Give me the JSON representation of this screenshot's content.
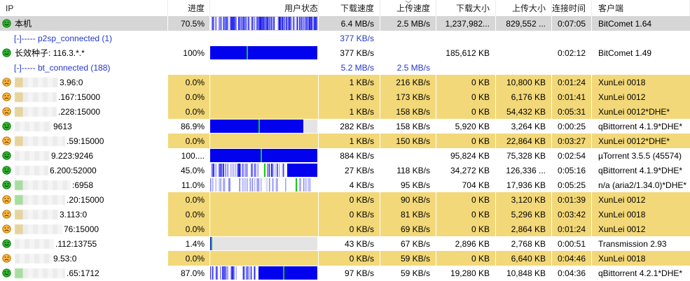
{
  "colors": {
    "bar_blue": "#0202ee",
    "marker_green": "#12c812",
    "row_yellow": "#f2d878",
    "row_selected": "#d6d6d6",
    "bar_track_gray": "#e4e4e4",
    "link_blue": "#2337cc",
    "icon_green": "#2fb52f",
    "icon_orange": "#ffb43c"
  },
  "header": {
    "columns": [
      {
        "key": "ip",
        "label": "IP",
        "align": "left"
      },
      {
        "key": "progress",
        "label": "进度",
        "align": "right"
      },
      {
        "key": "status",
        "label": "用户状态",
        "align": "right"
      },
      {
        "key": "dspeed",
        "label": "下载速度",
        "align": "right"
      },
      {
        "key": "uspeed",
        "label": "上传速度",
        "align": "right",
        "sort": "descending"
      },
      {
        "key": "dsize",
        "label": "下载大小",
        "align": "right"
      },
      {
        "key": "usize",
        "label": "上传大小",
        "align": "right"
      },
      {
        "key": "time",
        "label": "连接时间",
        "align": "right"
      },
      {
        "key": "client",
        "label": "客户端",
        "align": "left"
      }
    ]
  },
  "rows": [
    {
      "type": "peer",
      "icon": "happy-face-icon",
      "ip": "本机",
      "progress": "70.5%",
      "bar": {
        "style": "striped",
        "density": 0.8,
        "seed": 11
      },
      "dspeed": "6.4 MB/s",
      "uspeed": "2.5 MB/s",
      "dsize": "1,237,982...",
      "usize": "829,552 ...",
      "time": "0:07:05",
      "client": "BitComet 1.64",
      "bg": "selected"
    },
    {
      "type": "group",
      "label": "[-]----- p2sp_connected (1)",
      "dspeed": "377 KB/s",
      "uspeed": ""
    },
    {
      "type": "peer",
      "icon": "happy-face-icon",
      "ip": "长效种子: 116.3.*.*",
      "progress": "100%",
      "bar": {
        "style": "solid",
        "fill": 1,
        "marker": 0.34
      },
      "dspeed": "377 KB/s",
      "uspeed": "",
      "dsize": "185,612 KB",
      "usize": "",
      "time": "0:02:12",
      "client": "BitComet 1.49",
      "bg": "white"
    },
    {
      "type": "group",
      "label": "[-]----- bt_connected (188)",
      "dspeed": "5.2 MB/s",
      "uspeed": "2.5 MB/s"
    },
    {
      "type": "peer",
      "icon": "sad-face-icon",
      "redact": {
        "chip": "tan",
        "w": 50
      },
      "ip": "3.96:0",
      "progress": "0.0%",
      "bar": {
        "style": "none"
      },
      "dspeed": "1 KB/s",
      "uspeed": "216 KB/s",
      "dsize": "0 KB",
      "usize": "10,800 KB",
      "time": "0:01:24",
      "client": "XunLei 0018",
      "bg": "yellow"
    },
    {
      "type": "peer",
      "icon": "sad-face-icon",
      "redact": {
        "chip": "tan",
        "w": 48
      },
      "ip": ".167:15000",
      "progress": "0.0%",
      "bar": {
        "style": "none"
      },
      "dspeed": "1 KB/s",
      "uspeed": "173 KB/s",
      "dsize": "0 KB",
      "usize": "6,176 KB",
      "time": "0:01:41",
      "client": "XunLei 0012",
      "bg": "yellow"
    },
    {
      "type": "peer",
      "icon": "sad-face-icon",
      "redact": {
        "chip": "tan",
        "w": 48
      },
      "ip": ".228:15000",
      "progress": "0.0%",
      "bar": {
        "style": "none"
      },
      "dspeed": "1 KB/s",
      "uspeed": "158 KB/s",
      "dsize": "0 KB",
      "usize": "54,432 KB",
      "time": "0:05:31",
      "client": "XunLei 0012*DHE*",
      "bg": "yellow"
    },
    {
      "type": "peer",
      "icon": "happy-face-icon",
      "redact": {
        "chip": null,
        "w": 53
      },
      "ip": "9613",
      "progress": "86.9%",
      "bar": {
        "style": "solid",
        "fill": 0.869,
        "marker": 0.45,
        "track": "gray"
      },
      "dspeed": "282 KB/s",
      "uspeed": "158 KB/s",
      "dsize": "5,920 KB",
      "usize": "3,264 KB",
      "time": "0:00:25",
      "client": "qBittorrent 4.1.9*DHE*",
      "bg": "white"
    },
    {
      "type": "peer",
      "icon": "sad-face-icon",
      "redact": {
        "chip": "tan",
        "w": 60
      },
      "ip": ".59:15000",
      "progress": "0.0%",
      "bar": {
        "style": "none"
      },
      "dspeed": "1 KB/s",
      "uspeed": "150 KB/s",
      "dsize": "0 KB",
      "usize": "22,864 KB",
      "time": "0:03:27",
      "client": "XunLei 0012*DHE*",
      "bg": "yellow"
    },
    {
      "type": "peer",
      "icon": "happy-face-icon",
      "redact": {
        "chip": null,
        "w": 50
      },
      "ip": "9.223:9246",
      "progress": "100....",
      "bar": {
        "style": "solid",
        "fill": 1,
        "marker": 0.47
      },
      "dspeed": "884 KB/s",
      "uspeed": "",
      "dsize": "95,824 KB",
      "usize": "75,328 KB",
      "time": "0:02:54",
      "client": "µTorrent 3.5.5 (45574)",
      "bg": "white"
    },
    {
      "type": "peer",
      "icon": "happy-face-icon",
      "redact": {
        "chip": null,
        "w": 48
      },
      "ip": "6.200:52000",
      "progress": "45.0%",
      "bar": {
        "style": "striped",
        "density": 0.5,
        "solid_from": 0.72,
        "marker": 0.5,
        "seed": 7
      },
      "dspeed": "27 KB/s",
      "uspeed": "118 KB/s",
      "dsize": "34,272 KB",
      "usize": "126,336 ...",
      "time": "0:05:16",
      "client": "qBittorrent 4.1.9*DHE*",
      "bg": "white"
    },
    {
      "type": "peer",
      "icon": "happy-face-icon",
      "redact": {
        "chip": "green",
        "w": 68
      },
      "ip": ":6958",
      "progress": "11.0%",
      "bar": {
        "style": "striped",
        "density": 0.45,
        "light": true,
        "marker": 0.8,
        "seed": 8
      },
      "dspeed": "4 KB/s",
      "uspeed": "95 KB/s",
      "dsize": "704 KB",
      "usize": "17,936 KB",
      "time": "0:05:25",
      "client": "n/a (aria2/1.34.0)*DHE*",
      "bg": "white"
    },
    {
      "type": "peer",
      "icon": "sad-face-icon",
      "redact": {
        "chip": "green",
        "w": 60
      },
      "ip": ".20:15000",
      "progress": "0.0%",
      "bar": {
        "style": "none"
      },
      "dspeed": "0 KB/s",
      "uspeed": "90 KB/s",
      "dsize": "0 KB",
      "usize": "3,120 KB",
      "time": "0:01:39",
      "client": "XunLei 0012",
      "bg": "yellow"
    },
    {
      "type": "peer",
      "icon": "sad-face-icon",
      "redact": {
        "chip": "tan",
        "w": 50
      },
      "ip": "3.113:0",
      "progress": "0.0%",
      "bar": {
        "style": "none"
      },
      "dspeed": "0 KB/s",
      "uspeed": "81 KB/s",
      "dsize": "0 KB",
      "usize": "5,296 KB",
      "time": "0:03:42",
      "client": "XunLei 0018",
      "bg": "yellow"
    },
    {
      "type": "peer",
      "icon": "sad-face-icon",
      "redact": {
        "chip": "tan",
        "w": 56
      },
      "ip": "76:15000",
      "progress": "0.0%",
      "bar": {
        "style": "none"
      },
      "dspeed": "0 KB/s",
      "uspeed": "69 KB/s",
      "dsize": "0 KB",
      "usize": "2,864 KB",
      "time": "0:01:24",
      "client": "XunLei 0012",
      "bg": "yellow"
    },
    {
      "type": "peer",
      "icon": "happy-face-icon",
      "redact": {
        "chip": null,
        "w": 56
      },
      "ip": ".112:13755",
      "progress": "1.4%",
      "bar": {
        "style": "solid",
        "fill": 0.014,
        "marker": 0.004,
        "track": "gray"
      },
      "dspeed": "43 KB/s",
      "uspeed": "67 KB/s",
      "dsize": "2,896 KB",
      "usize": "2,768 KB",
      "time": "0:00:51",
      "client": "Transmission 2.93",
      "bg": "white"
    },
    {
      "type": "peer",
      "icon": "sad-face-icon",
      "redact": {
        "chip": null,
        "w": 53
      },
      "ip": "9.53:0",
      "progress": "0.0%",
      "bar": {
        "style": "none"
      },
      "dspeed": "0 KB/s",
      "uspeed": "59 KB/s",
      "dsize": "0 KB",
      "usize": "6,640 KB",
      "time": "0:04:46",
      "client": "XunLei 0018",
      "bg": "yellow"
    },
    {
      "type": "peer",
      "icon": "happy-face-icon",
      "redact": {
        "chip": "green",
        "w": 60
      },
      "ip": ".65:1712",
      "progress": "87.0%",
      "bar": {
        "style": "striped",
        "density": 0.62,
        "solid_from": 0.45,
        "marker": 0.68,
        "seed": 14
      },
      "dspeed": "97 KB/s",
      "uspeed": "59 KB/s",
      "dsize": "19,280 KB",
      "usize": "10,848 KB",
      "time": "0:04:36",
      "client": "qBittorrent 4.2.1*DHE*",
      "bg": "white"
    }
  ]
}
